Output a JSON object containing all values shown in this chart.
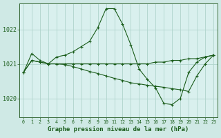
{
  "background_color": "#cfe9e5",
  "plot_bg_color": "#d9f0ee",
  "grid_color": "#b0d4cc",
  "line_color": "#1a5c1a",
  "marker_color": "#1a5c1a",
  "xlabel": "Graphe pression niveau de la mer (hPa)",
  "xlabel_fontsize": 6.5,
  "ytick_fontsize": 6.0,
  "xtick_fontsize": 4.8,
  "yticks": [
    1020,
    1021,
    1022
  ],
  "xticks": [
    0,
    1,
    2,
    3,
    4,
    5,
    6,
    7,
    8,
    9,
    10,
    11,
    12,
    13,
    14,
    15,
    16,
    17,
    18,
    19,
    20,
    21,
    22,
    23
  ],
  "ylim": [
    1019.45,
    1022.75
  ],
  "xlim": [
    -0.5,
    23.5
  ],
  "lines": [
    [
      1020.75,
      1021.3,
      1021.1,
      1021.0,
      1021.2,
      1021.25,
      1021.35,
      1021.5,
      1021.65,
      1022.05,
      1022.6,
      1022.6,
      1022.15,
      1021.55,
      1020.85,
      1020.55,
      1020.3,
      1019.85,
      1019.82,
      1020.0,
      1020.75,
      1021.05,
      1021.2,
      1021.25
    ],
    [
      1020.75,
      1021.1,
      1021.05,
      1021.0,
      1021.0,
      1021.0,
      1021.0,
      1021.0,
      1021.0,
      1021.0,
      1021.0,
      1021.0,
      1021.0,
      1021.0,
      1021.0,
      1021.0,
      1021.05,
      1021.05,
      1021.1,
      1021.1,
      1021.15,
      1021.15,
      1021.2,
      1021.25
    ],
    [
      1020.75,
      1021.1,
      1021.05,
      1021.0,
      1021.0,
      1020.98,
      1020.92,
      1020.85,
      1020.78,
      1020.72,
      1020.65,
      1020.58,
      1020.52,
      1020.45,
      1020.42,
      1020.38,
      1020.35,
      1020.32,
      1020.28,
      1020.25,
      1020.2,
      1020.65,
      1021.0,
      1021.25
    ]
  ]
}
